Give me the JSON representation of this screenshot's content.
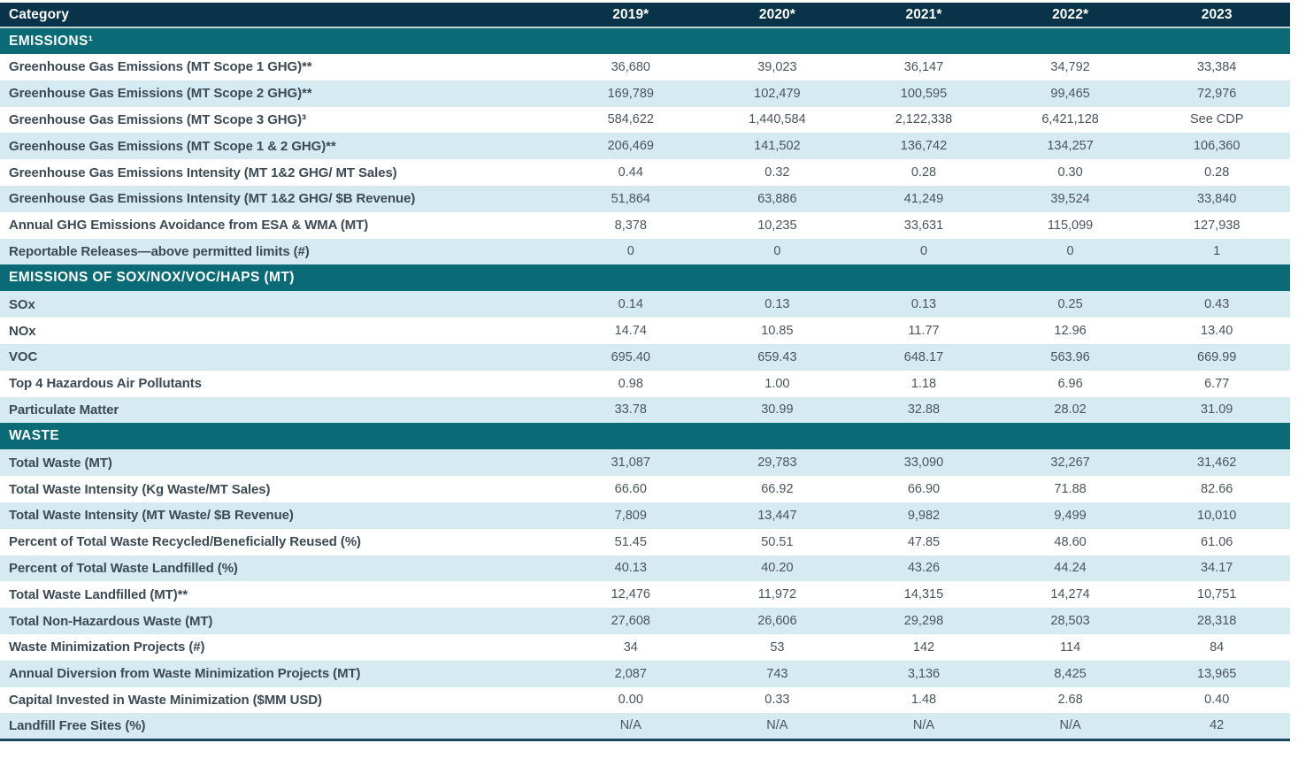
{
  "table": {
    "columns": [
      "Category",
      "2019*",
      "2020*",
      "2021*",
      "2022*",
      "2023"
    ],
    "sections": [
      {
        "title": "EMISSIONS¹",
        "rows": [
          {
            "label": "Greenhouse Gas Emissions (MT Scope 1 GHG)**",
            "values": [
              "36,680",
              "39,023",
              "36,147",
              "34,792",
              "33,384"
            ]
          },
          {
            "label": "Greenhouse Gas Emissions (MT Scope 2 GHG)**",
            "values": [
              "169,789",
              "102,479",
              "100,595",
              "99,465",
              "72,976"
            ]
          },
          {
            "label": "Greenhouse Gas Emissions (MT Scope 3 GHG)³",
            "values": [
              "584,622",
              "1,440,584",
              "2,122,338",
              "6,421,128",
              "See CDP"
            ]
          },
          {
            "label": "Greenhouse Gas Emissions (MT Scope 1 & 2 GHG)**",
            "values": [
              "206,469",
              "141,502",
              "136,742",
              "134,257",
              "106,360"
            ]
          },
          {
            "label": "Greenhouse Gas Emissions Intensity (MT 1&2 GHG/ MT Sales)",
            "values": [
              "0.44",
              "0.32",
              "0.28",
              "0.30",
              "0.28"
            ]
          },
          {
            "label": "Greenhouse Gas Emissions Intensity (MT 1&2 GHG/ $B Revenue)",
            "values": [
              "51,864",
              "63,886",
              "41,249",
              "39,524",
              "33,840"
            ]
          },
          {
            "label": "Annual GHG Emissions Avoidance from ESA & WMA (MT)",
            "values": [
              "8,378",
              "10,235",
              "33,631",
              "115,099",
              "127,938"
            ]
          },
          {
            "label": "Reportable Releases—above permitted limits (#)",
            "values": [
              "0",
              "0",
              "0",
              "0",
              "1"
            ]
          }
        ]
      },
      {
        "title": "EMISSIONS OF SOX/NOX/VOC/HAPS (MT)",
        "rows": [
          {
            "label": "SOx",
            "values": [
              "0.14",
              "0.13",
              "0.13",
              "0.25",
              "0.43"
            ]
          },
          {
            "label": "NOx",
            "values": [
              "14.74",
              "10.85",
              "11.77",
              "12.96",
              "13.40"
            ]
          },
          {
            "label": "VOC",
            "values": [
              "695.40",
              "659.43",
              "648.17",
              "563.96",
              "669.99"
            ]
          },
          {
            "label": "Top 4 Hazardous Air Pollutants",
            "values": [
              "0.98",
              "1.00",
              "1.18",
              "6.96",
              "6.77"
            ]
          },
          {
            "label": "Particulate Matter",
            "values": [
              "33.78",
              "30.99",
              "32.88",
              "28.02",
              "31.09"
            ]
          }
        ]
      },
      {
        "title": "WASTE",
        "rows": [
          {
            "label": "Total Waste (MT)",
            "values": [
              "31,087",
              "29,783",
              "33,090",
              "32,267",
              "31,462"
            ]
          },
          {
            "label": "Total Waste Intensity (Kg Waste/MT Sales)",
            "values": [
              "66.60",
              "66.92",
              "66.90",
              "71.88",
              "82.66"
            ]
          },
          {
            "label": "Total Waste Intensity (MT Waste/ $B Revenue)",
            "values": [
              "7,809",
              "13,447",
              "9,982",
              "9,499",
              "10,010"
            ]
          },
          {
            "label": "Percent of Total Waste Recycled/Beneficially Reused (%)",
            "values": [
              "51.45",
              "50.51",
              "47.85",
              "48.60",
              "61.06"
            ]
          },
          {
            "label": "Percent of Total Waste Landfilled (%)",
            "values": [
              "40.13",
              "40.20",
              "43.26",
              "44.24",
              "34.17"
            ]
          },
          {
            "label": "Total Waste Landfilled (MT)**",
            "values": [
              "12,476",
              "11,972",
              "14,315",
              "14,274",
              "10,751"
            ]
          },
          {
            "label": "Total Non-Hazardous Waste (MT)",
            "values": [
              "27,608",
              "26,606",
              "29,298",
              "28,503",
              "28,318"
            ]
          },
          {
            "label": "Waste Minimization Projects (#)",
            "values": [
              "34",
              "53",
              "142",
              "114",
              "84"
            ]
          },
          {
            "label": "Annual Diversion from Waste Minimization Projects (MT)",
            "values": [
              "2,087",
              "743",
              "3,136",
              "8,425",
              "13,965"
            ]
          },
          {
            "label": "Capital Invested in Waste Minimization ($MM USD)",
            "values": [
              "0.00",
              "0.33",
              "1.48",
              "2.68",
              "0.40"
            ]
          },
          {
            "label": "Landfill Free Sites (%)",
            "values": [
              "N/A",
              "N/A",
              "N/A",
              "N/A",
              "42"
            ]
          }
        ]
      }
    ]
  },
  "colors": {
    "header_bg": "#083349",
    "section_bg": "#0a6a75",
    "row_alt_bg": "#d5ebf1",
    "row_bg": "#ffffff",
    "header_divider": "#c3ced3",
    "bottom_border": "#1c4a63",
    "label_text": "#3b4a54",
    "value_text": "#4a545c",
    "header_text": "#ffffff"
  }
}
